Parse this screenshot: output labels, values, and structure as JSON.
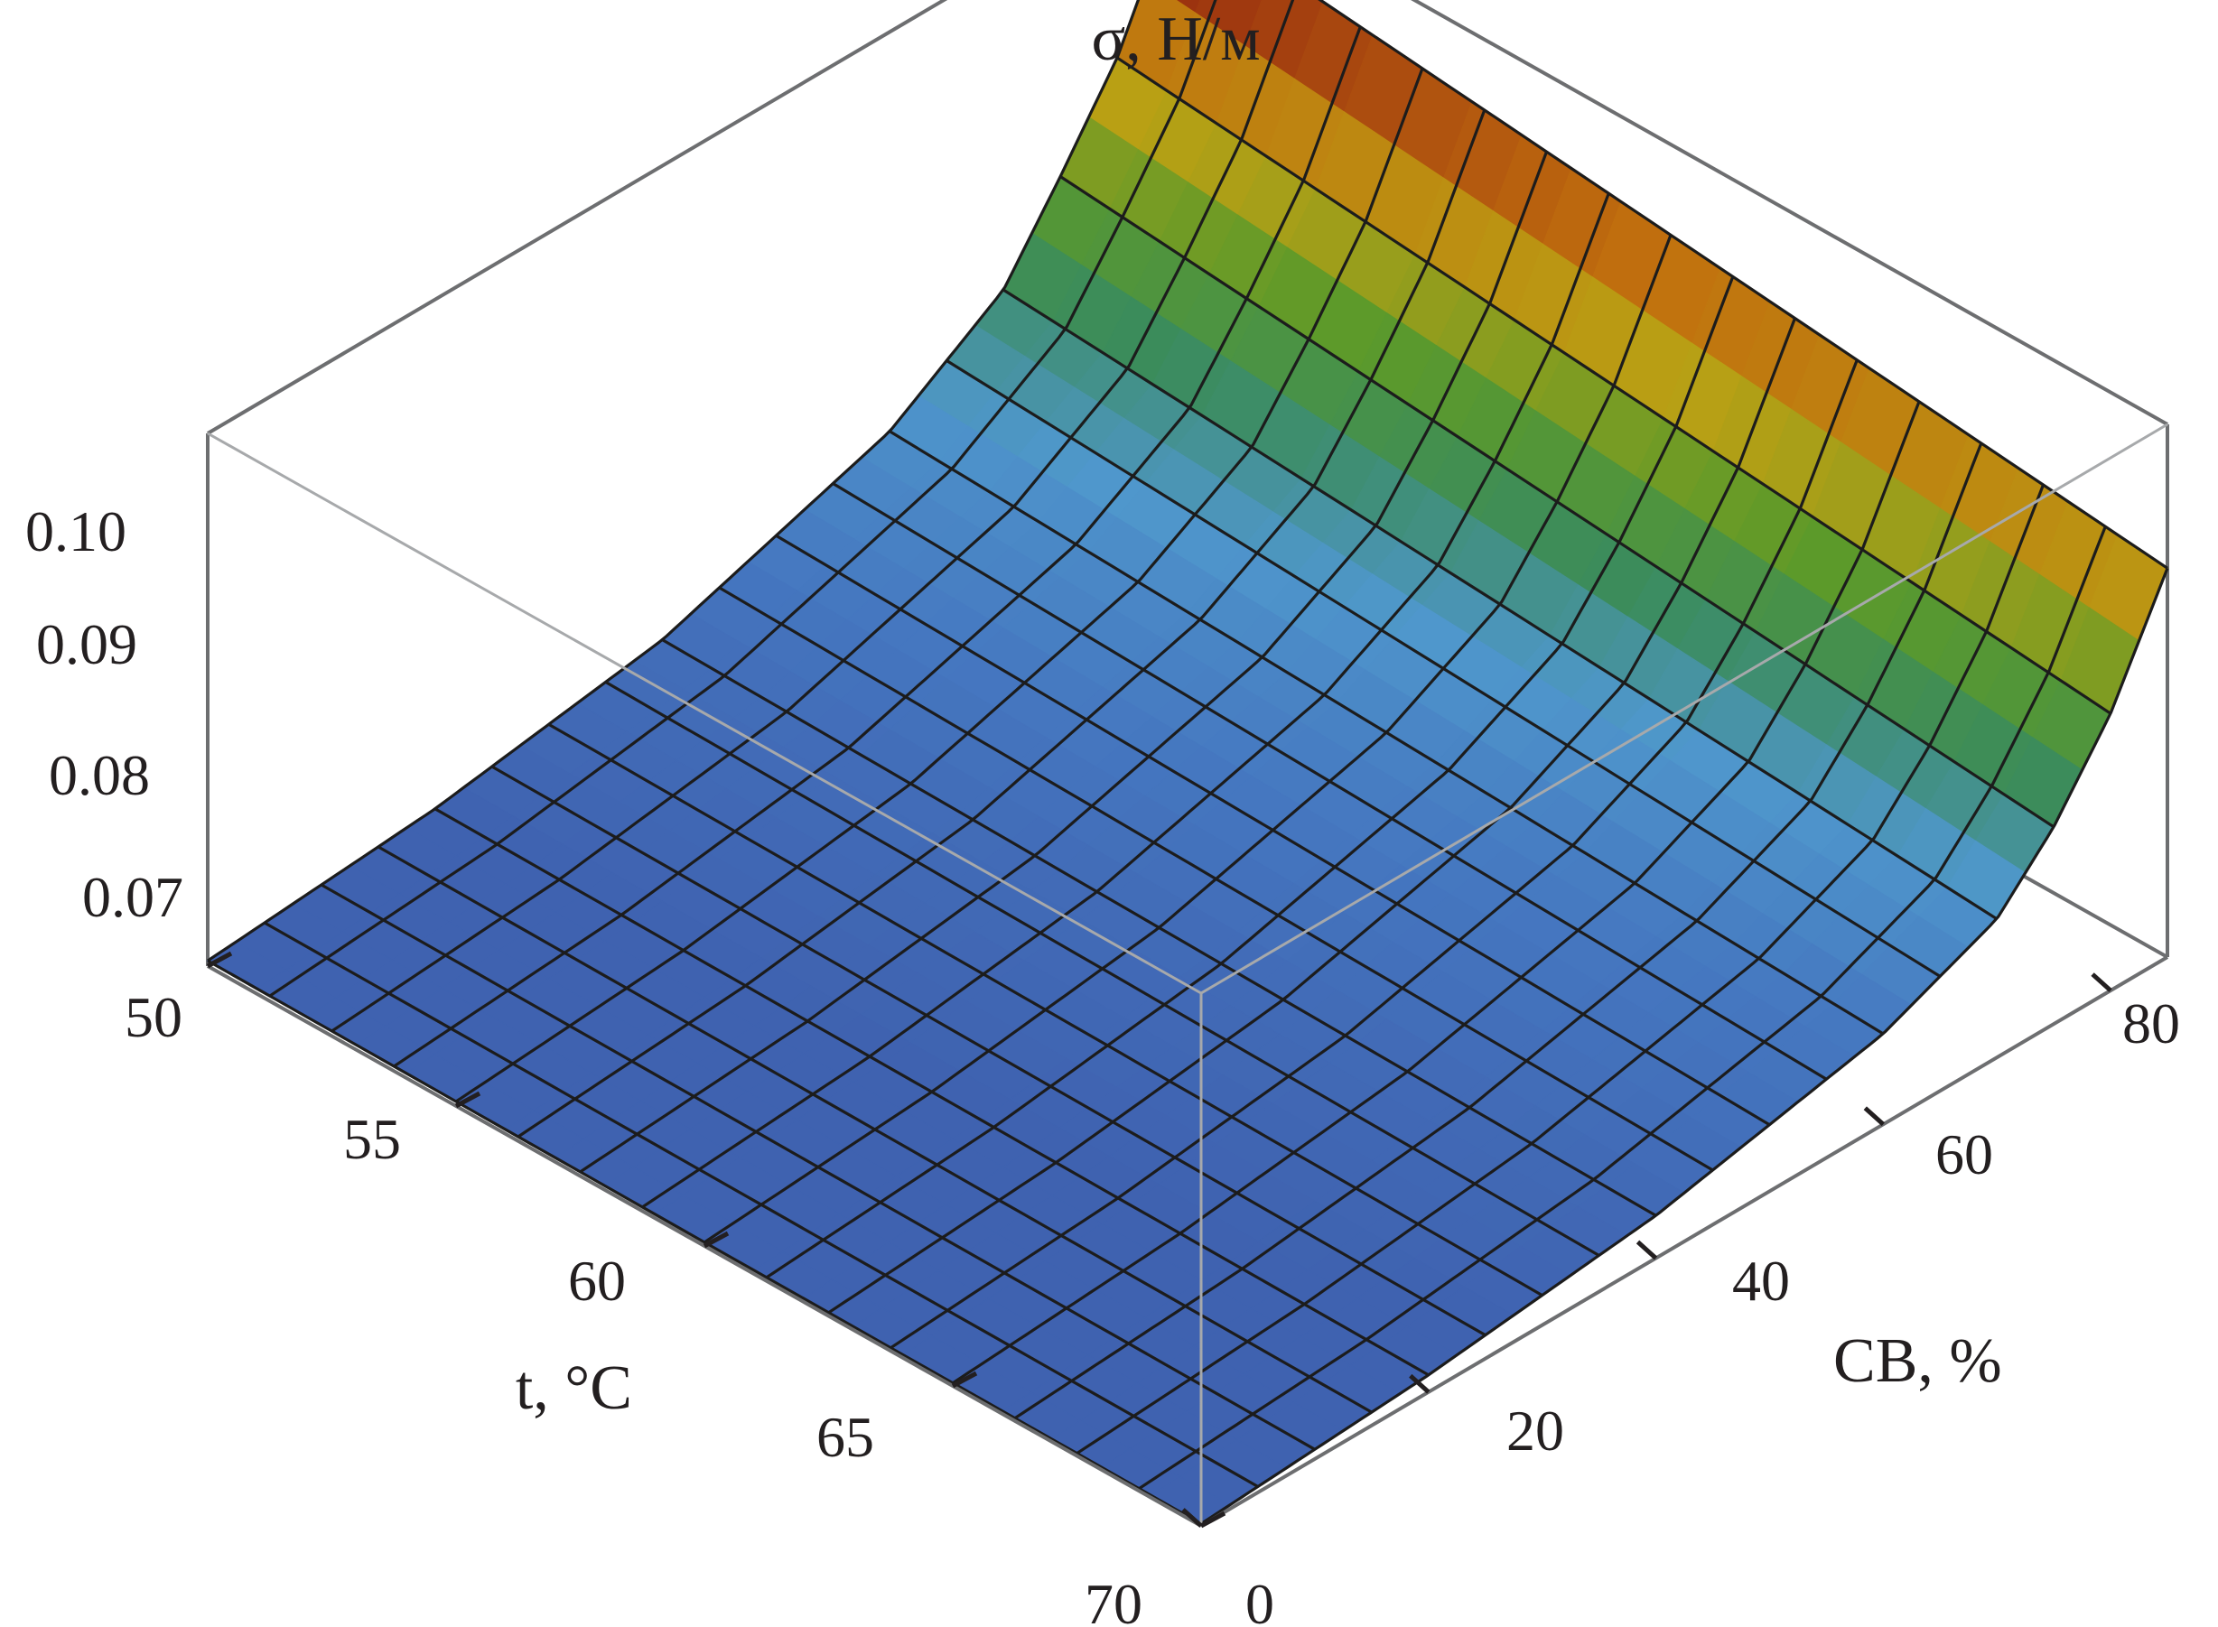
{
  "chart_data": {
    "type": "surface3d",
    "title": "",
    "zlabel": "σ, Н/м",
    "xlabel": "t, °C",
    "ylabel": "СВ, %",
    "x_ticks": [
      "50",
      "55",
      "60",
      "65",
      "70"
    ],
    "y_ticks": [
      "0",
      "20",
      "40",
      "60",
      "80"
    ],
    "z_ticks": [
      "0.07",
      "0.08",
      "0.09",
      "0.10"
    ],
    "xlim": [
      50,
      70
    ],
    "ylim": [
      0,
      85
    ],
    "zlim": [
      0.065,
      0.115
    ],
    "grid": false,
    "colorscale": [
      "#3f62b0",
      "#4577c0",
      "#4f97cc",
      "#3b8c5c",
      "#5c9a2a",
      "#b9a014",
      "#c1700e",
      "#8f1d10"
    ],
    "surface_samples": {
      "y": [
        0,
        20,
        40,
        60,
        70,
        75,
        80,
        85
      ],
      "z_at_x50": [
        0.0655,
        0.0672,
        0.0705,
        0.0775,
        0.0845,
        0.092,
        0.1,
        0.1115
      ],
      "z_at_x70": [
        0.0652,
        0.0666,
        0.069,
        0.0735,
        0.078,
        0.0835,
        0.091,
        0.1015
      ]
    }
  }
}
